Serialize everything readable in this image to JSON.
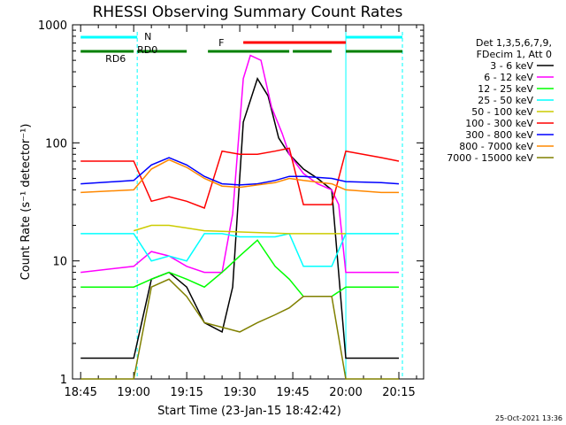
{
  "chart_data": {
    "type": "line",
    "title": "RHESSI Observing Summary Count Rates",
    "xlabel": "Start Time (23-Jan-15 18:42:42)",
    "ylabel": "Count Rate (s⁻¹ detector⁻¹)",
    "yscale": "log",
    "ylim": [
      1,
      1000
    ],
    "x_ticks": [
      "18:45",
      "19:00",
      "19:15",
      "19:30",
      "19:45",
      "20:00",
      "20:15"
    ],
    "y_ticks": [
      "1",
      "10",
      "100",
      "1000"
    ],
    "xlim": [
      "18:42:42",
      "20:22:00"
    ],
    "legend_header": [
      "Det 1,3,5,6,7,9,",
      "FDecim 1, Att 0"
    ],
    "legend_position": "right",
    "annotations": {
      "night": "N",
      "flare": "F",
      "saa": "RD6",
      "saa2": "RD0"
    },
    "footer_date": "25-Oct-2021 13:36",
    "series": [
      {
        "name": "3 - 6 keV",
        "color": "#000000",
        "points": [
          [
            "18:45",
            1.5
          ],
          [
            "19:00",
            1.5
          ],
          [
            "19:05",
            7
          ],
          [
            "19:10",
            8
          ],
          [
            "19:15",
            6
          ],
          [
            "19:20",
            3
          ],
          [
            "19:25",
            2.5
          ],
          [
            "19:28",
            6
          ],
          [
            "19:31",
            150
          ],
          [
            "19:35",
            350
          ],
          [
            "19:38",
            250
          ],
          [
            "19:41",
            110
          ],
          [
            "19:44",
            80
          ],
          [
            "19:48",
            60
          ],
          [
            "19:52",
            50
          ],
          [
            "19:56",
            40
          ],
          [
            "20:00",
            1.5
          ],
          [
            "20:10",
            1.5
          ],
          [
            "20:15",
            1.5
          ]
        ]
      },
      {
        "name": "6 - 12 keV",
        "color": "#ff00ff",
        "points": [
          [
            "18:45",
            8
          ],
          [
            "19:00",
            9
          ],
          [
            "19:05",
            12
          ],
          [
            "19:10",
            11
          ],
          [
            "19:15",
            9
          ],
          [
            "19:20",
            8
          ],
          [
            "19:25",
            8
          ],
          [
            "19:28",
            25
          ],
          [
            "19:31",
            350
          ],
          [
            "19:33",
            550
          ],
          [
            "19:36",
            500
          ],
          [
            "19:39",
            200
          ],
          [
            "19:42",
            120
          ],
          [
            "19:44",
            80
          ],
          [
            "19:48",
            55
          ],
          [
            "19:52",
            45
          ],
          [
            "19:56",
            40
          ],
          [
            "19:58",
            30
          ],
          [
            "20:00",
            8
          ],
          [
            "20:10",
            8
          ],
          [
            "20:15",
            8
          ]
        ]
      },
      {
        "name": "12 - 25 keV",
        "color": "#00ff00",
        "points": [
          [
            "18:45",
            6
          ],
          [
            "19:00",
            6
          ],
          [
            "19:05",
            7
          ],
          [
            "19:10",
            8
          ],
          [
            "19:15",
            7
          ],
          [
            "19:20",
            6
          ],
          [
            "19:25",
            8
          ],
          [
            "19:30",
            11
          ],
          [
            "19:35",
            15
          ],
          [
            "19:40",
            9
          ],
          [
            "19:44",
            7
          ],
          [
            "19:48",
            5
          ],
          [
            "19:56",
            5
          ],
          [
            "20:00",
            6
          ],
          [
            "20:10",
            6
          ],
          [
            "20:15",
            6
          ]
        ]
      },
      {
        "name": "25 - 50 keV",
        "color": "#00ffff",
        "points": [
          [
            "18:45",
            17
          ],
          [
            "19:00",
            17
          ],
          [
            "19:05",
            10
          ],
          [
            "19:10",
            11
          ],
          [
            "19:15",
            10
          ],
          [
            "19:20",
            17
          ],
          [
            "19:25",
            17
          ],
          [
            "19:30",
            16
          ],
          [
            "19:35",
            16
          ],
          [
            "19:40",
            16
          ],
          [
            "19:44",
            17
          ],
          [
            "19:48",
            9
          ],
          [
            "19:56",
            9
          ],
          [
            "20:00",
            17
          ],
          [
            "20:10",
            17
          ],
          [
            "20:15",
            17
          ]
        ]
      },
      {
        "name": "50 - 100 keV",
        "color": "#cccc00",
        "points": [
          [
            "19:00",
            18
          ],
          [
            "19:05",
            20
          ],
          [
            "19:10",
            20
          ],
          [
            "19:15",
            19
          ],
          [
            "19:20",
            18
          ],
          [
            "19:44",
            17
          ],
          [
            "19:48",
            17
          ],
          [
            "19:56",
            17
          ],
          [
            "20:00",
            17
          ]
        ]
      },
      {
        "name": "100 - 300 keV",
        "color": "#ff0000",
        "points": [
          [
            "18:45",
            70
          ],
          [
            "19:00",
            70
          ],
          [
            "19:05",
            32
          ],
          [
            "19:10",
            35
          ],
          [
            "19:15",
            32
          ],
          [
            "19:20",
            28
          ],
          [
            "19:25",
            85
          ],
          [
            "19:30",
            80
          ],
          [
            "19:35",
            80
          ],
          [
            "19:40",
            85
          ],
          [
            "19:44",
            90
          ],
          [
            "19:48",
            30
          ],
          [
            "19:56",
            30
          ],
          [
            "20:00",
            85
          ],
          [
            "20:10",
            75
          ],
          [
            "20:15",
            70
          ]
        ]
      },
      {
        "name": "300 - 800 keV",
        "color": "#0000ff",
        "points": [
          [
            "18:45",
            45
          ],
          [
            "19:00",
            48
          ],
          [
            "19:05",
            65
          ],
          [
            "19:10",
            75
          ],
          [
            "19:15",
            65
          ],
          [
            "19:20",
            52
          ],
          [
            "19:25",
            45
          ],
          [
            "19:30",
            44
          ],
          [
            "19:35",
            45
          ],
          [
            "19:40",
            48
          ],
          [
            "19:44",
            52
          ],
          [
            "19:48",
            52
          ],
          [
            "19:56",
            50
          ],
          [
            "20:00",
            47
          ],
          [
            "20:10",
            46
          ],
          [
            "20:15",
            45
          ]
        ]
      },
      {
        "name": "800 - 7000 keV",
        "color": "#ff8800",
        "points": [
          [
            "18:45",
            38
          ],
          [
            "19:00",
            40
          ],
          [
            "19:05",
            60
          ],
          [
            "19:10",
            72
          ],
          [
            "19:15",
            62
          ],
          [
            "19:20",
            50
          ],
          [
            "19:25",
            43
          ],
          [
            "19:30",
            42
          ],
          [
            "19:35",
            44
          ],
          [
            "19:40",
            46
          ],
          [
            "19:44",
            50
          ],
          [
            "19:48",
            48
          ],
          [
            "19:56",
            45
          ],
          [
            "20:00",
            40
          ],
          [
            "20:10",
            38
          ],
          [
            "20:15",
            38
          ]
        ]
      },
      {
        "name": "7000 - 15000 keV",
        "color": "#808000",
        "points": [
          [
            "18:45",
            1
          ],
          [
            "19:00",
            1
          ],
          [
            "19:05",
            6
          ],
          [
            "19:10",
            7
          ],
          [
            "19:15",
            5
          ],
          [
            "19:20",
            3
          ],
          [
            "19:30",
            2.5
          ],
          [
            "19:35",
            3
          ],
          [
            "19:40",
            3.5
          ],
          [
            "19:44",
            4
          ],
          [
            "19:48",
            5
          ],
          [
            "19:56",
            5
          ],
          [
            "20:00",
            1
          ],
          [
            "20:10",
            1
          ],
          [
            "20:15",
            1
          ]
        ]
      }
    ],
    "status_bars": [
      {
        "name": "N",
        "color": "#00ffff",
        "row": "top",
        "intervals": [
          [
            "18:45",
            "19:01"
          ],
          [
            "20:00",
            "20:16"
          ]
        ]
      },
      {
        "name": "F",
        "color": "#ff0000",
        "row": "top",
        "intervals": [
          [
            "19:31",
            "20:00"
          ]
        ]
      },
      {
        "name": "RD6",
        "color": "#008000",
        "row": "bottom",
        "intervals": [
          [
            "18:45",
            "19:00"
          ],
          [
            "19:01",
            "19:15"
          ],
          [
            "19:21",
            "19:44"
          ],
          [
            "19:45",
            "19:56"
          ],
          [
            "20:00",
            "20:16"
          ]
        ]
      }
    ],
    "vertical_markers": [
      {
        "time": "19:01",
        "color": "#00ffff",
        "style": "dashed"
      },
      {
        "time": "20:00",
        "color": "#00ffff",
        "style": "solid"
      },
      {
        "time": "20:16",
        "color": "#00ffff",
        "style": "dashed"
      }
    ]
  }
}
